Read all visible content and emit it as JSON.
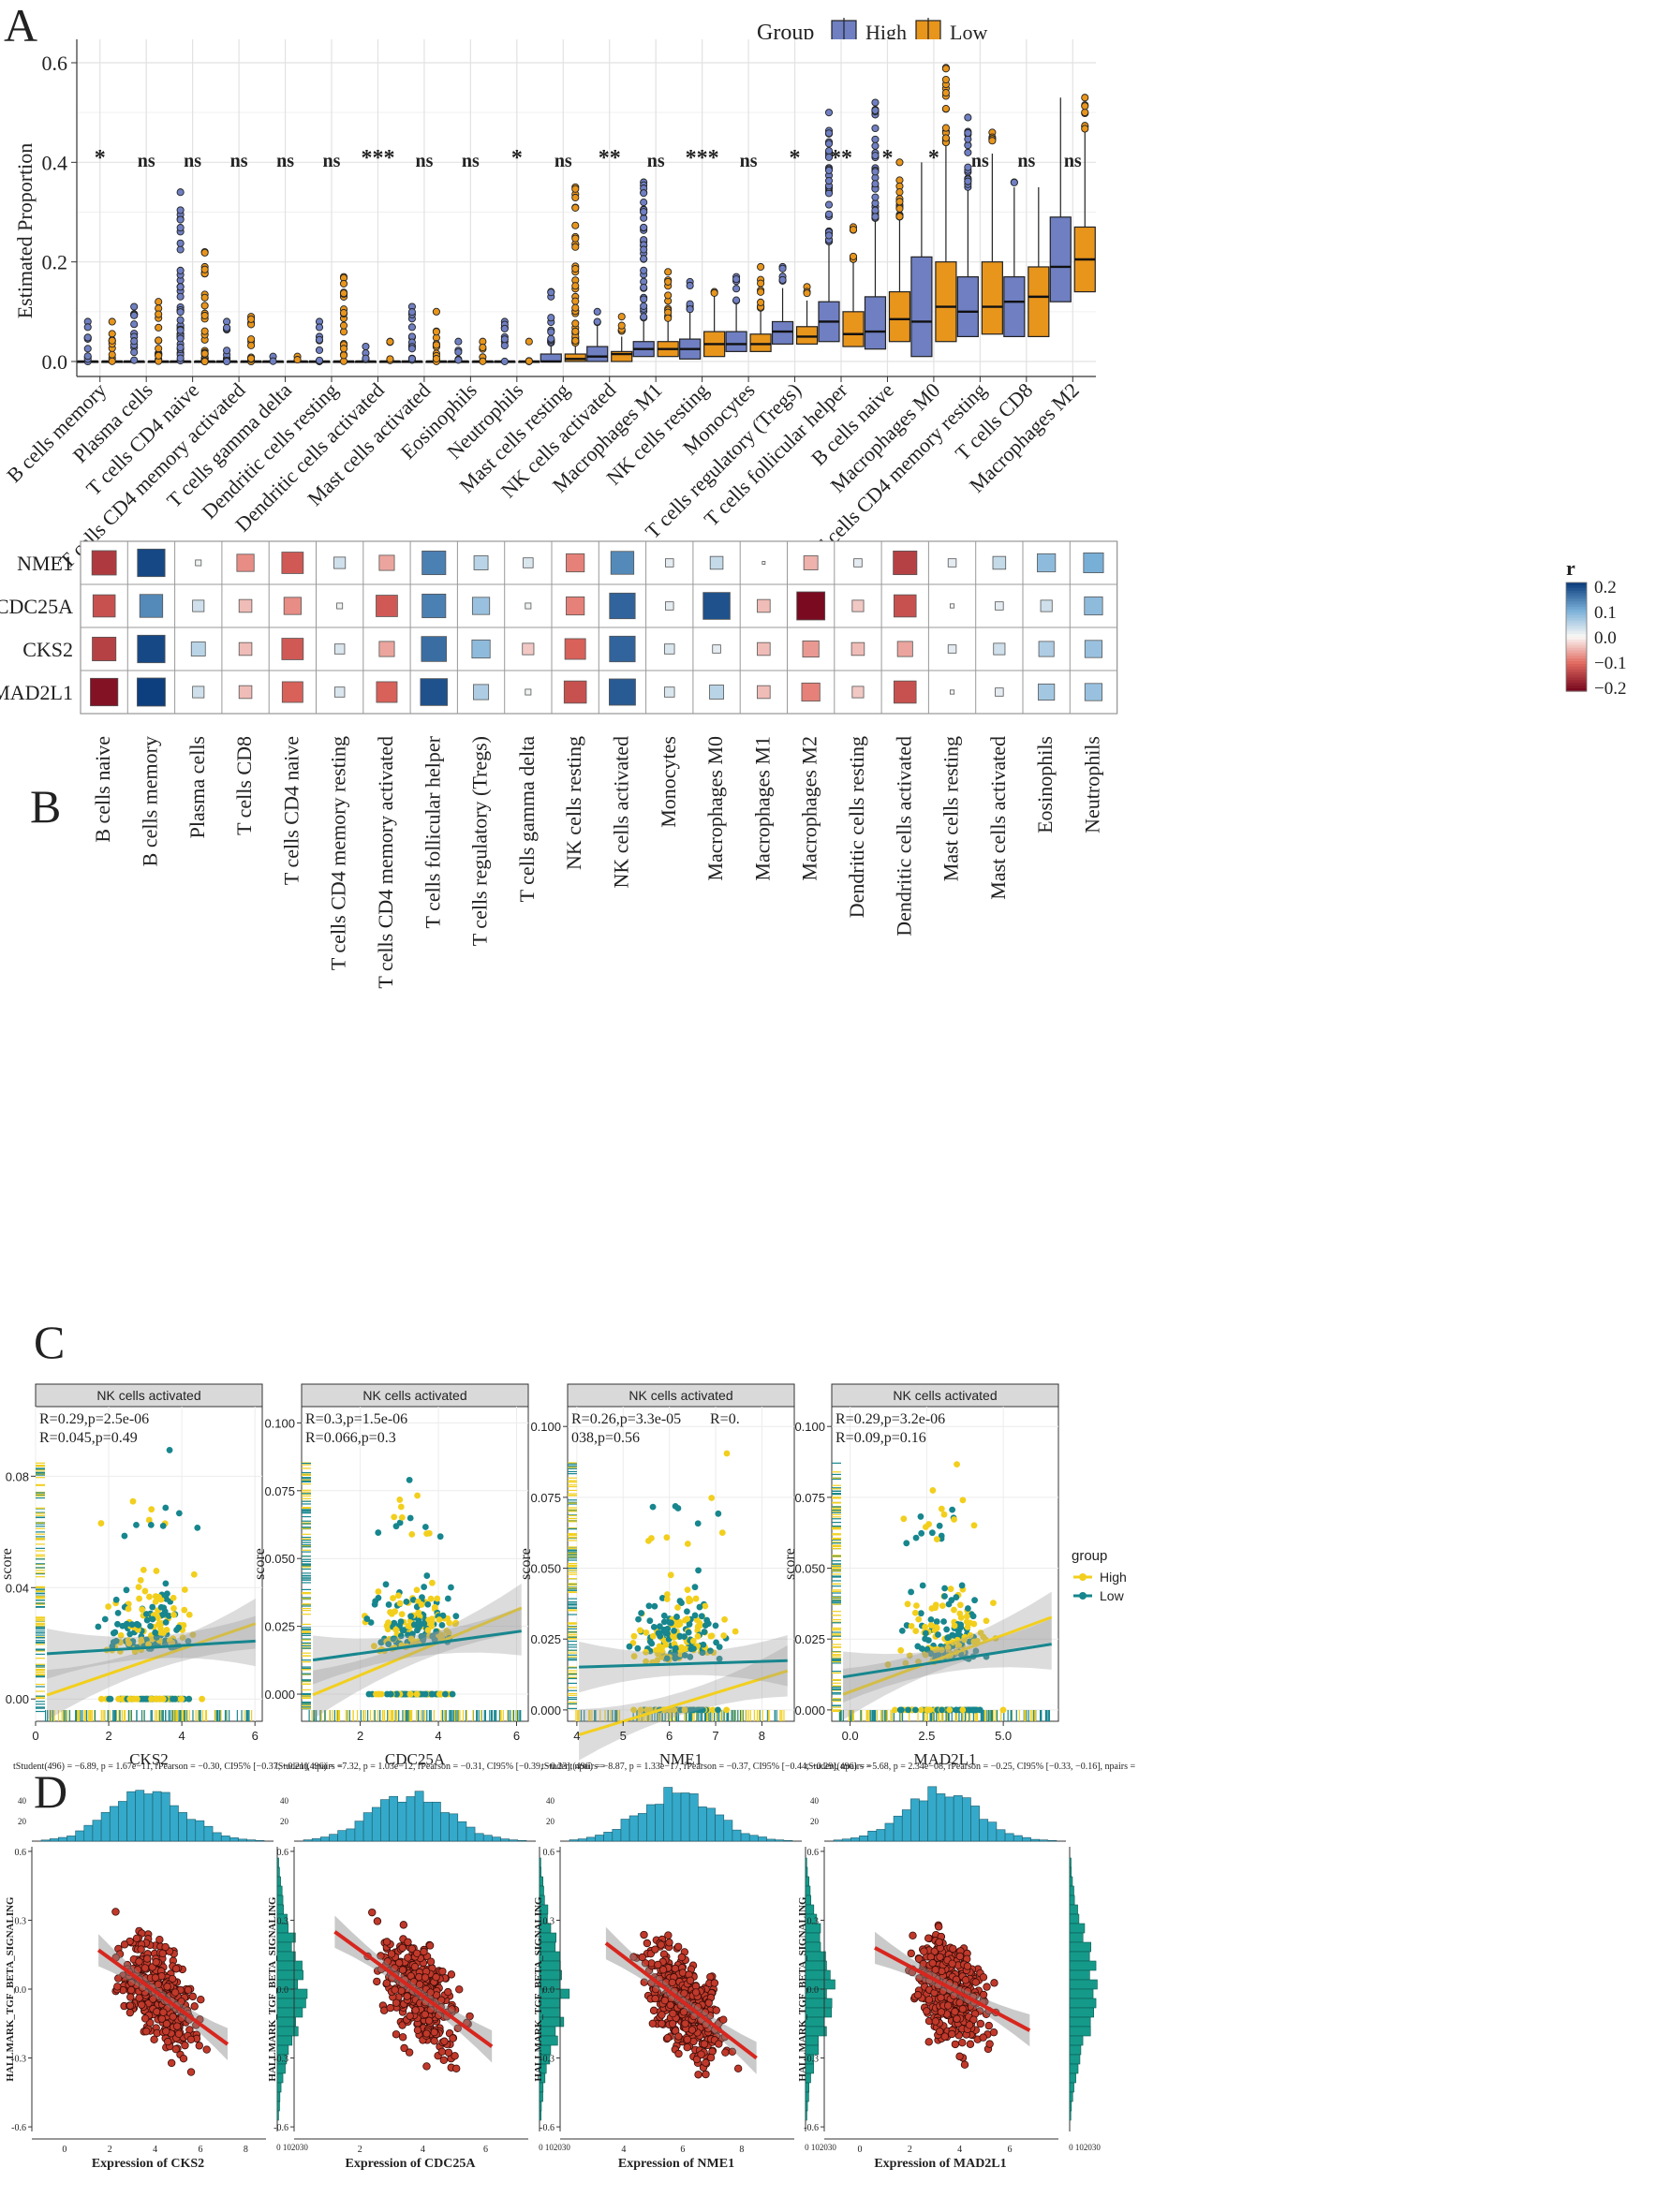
{
  "colors": {
    "high_box": "#6f7fc2",
    "low_box": "#e8951c",
    "corr_pos": "#0d3f7e",
    "corr_neg": "#7a0a20",
    "scatter_high": "#f2cf1d",
    "scatter_low": "#17868e",
    "hist": "#35a9c9",
    "hist_side": "#159a8a",
    "scatter_pt": "#c0392b",
    "fit_red": "#d7261e"
  },
  "chart_data": [
    {
      "panel": "A",
      "type": "box",
      "legend_title": "Group",
      "legend": [
        "High",
        "Low"
      ],
      "ylabel": "Estimated Proportion",
      "ylim": [
        0,
        0.6
      ],
      "yticks": [
        "0.0",
        "0.2",
        "0.4",
        "0.6"
      ],
      "categories": [
        "B cells memory",
        "Plasma cells",
        "T cells CD4 naive",
        "T cells CD4 memory activated",
        "T cells gamma delta",
        "Dendritic cells resting",
        "Dendritic cells activated",
        "Mast cells activated",
        "Eosinophils",
        "Neutrophils",
        "Mast cells resting",
        "NK cells activated",
        "Macrophages M1",
        "NK cells resting",
        "Monocytes",
        "T cells regulatory (Tregs)",
        "T cells follicular helper",
        "B cells naive",
        "Macrophages M0",
        "T cells CD4 memory resting",
        "T cells CD8",
        "Macrophages M2"
      ],
      "significance": [
        "*",
        "ns",
        "ns",
        "ns",
        "ns",
        "ns",
        "***",
        "ns",
        "ns",
        "*",
        "ns",
        "**",
        "ns",
        "***",
        "ns",
        "*",
        "**",
        "*",
        "*",
        "ns",
        "ns",
        "ns"
      ],
      "series": [
        {
          "name": "High",
          "q1": [
            0,
            0,
            0,
            0,
            0,
            0,
            0,
            0,
            0,
            0,
            0,
            0,
            0.01,
            0.005,
            0.02,
            0.035,
            0.04,
            0.025,
            0.01,
            0.05,
            0.05,
            0.12
          ],
          "median": [
            0,
            0,
            0,
            0,
            0,
            0,
            0,
            0,
            0,
            0,
            0,
            0.01,
            0.025,
            0.025,
            0.035,
            0.06,
            0.08,
            0.06,
            0.08,
            0.1,
            0.12,
            0.19
          ],
          "q3": [
            0,
            0,
            0,
            0,
            0,
            0,
            0,
            0,
            0,
            0,
            0.015,
            0.03,
            0.04,
            0.045,
            0.06,
            0.08,
            0.12,
            0.13,
            0.21,
            0.17,
            0.17,
            0.29
          ],
          "max": [
            0.08,
            0.11,
            0.34,
            0.08,
            0.01,
            0.08,
            0.03,
            0.11,
            0.04,
            0.08,
            0.14,
            0.1,
            0.36,
            0.16,
            0.17,
            0.19,
            0.5,
            0.52,
            0.4,
            0.49,
            0.36,
            0.53
          ]
        },
        {
          "name": "Low",
          "q1": [
            0,
            0,
            0,
            0,
            0,
            0,
            0,
            0,
            0,
            0,
            0,
            0,
            0.01,
            0.01,
            0.02,
            0.035,
            0.03,
            0.04,
            0.04,
            0.055,
            0.05,
            0.14
          ],
          "median": [
            0,
            0,
            0,
            0,
            0,
            0,
            0,
            0,
            0,
            0,
            0.005,
            0.015,
            0.025,
            0.035,
            0.035,
            0.05,
            0.055,
            0.085,
            0.11,
            0.11,
            0.13,
            0.205
          ],
          "q3": [
            0,
            0,
            0,
            0,
            0,
            0,
            0,
            0,
            0,
            0,
            0.015,
            0.02,
            0.04,
            0.06,
            0.055,
            0.07,
            0.1,
            0.14,
            0.2,
            0.2,
            0.19,
            0.27
          ],
          "max": [
            0.08,
            0.12,
            0.22,
            0.09,
            0.01,
            0.17,
            0.04,
            0.1,
            0.04,
            0.04,
            0.35,
            0.09,
            0.18,
            0.14,
            0.19,
            0.15,
            0.27,
            0.4,
            0.59,
            0.46,
            0.35,
            0.53
          ]
        }
      ]
    },
    {
      "panel": "B",
      "type": "heatmap",
      "rows": [
        "NME1",
        "CDC25A",
        "CKS2",
        "MAD2L1"
      ],
      "columns": [
        "B cells naive",
        "B cells memory",
        "Plasma cells",
        "T cells CD8",
        "T cells CD4 naive",
        "T cells CD4 memory resting",
        "T cells CD4 memory activated",
        "T cells follicular helper",
        "T cells regulatory (Tregs)",
        "T cells gamma delta",
        "NK cells resting",
        "NK cells activated",
        "Monocytes",
        "Macrophages M0",
        "Macrophages M1",
        "Macrophages M2",
        "Dendritic cells resting",
        "Dendritic cells activated",
        "Mast cells resting",
        "Mast cells activated",
        "Eosinophils",
        "Neutrophils"
      ],
      "values": [
        [
          -0.18,
          0.23,
          0.01,
          -0.09,
          -0.14,
          0.04,
          -0.07,
          0.17,
          0.06,
          0.03,
          -0.1,
          0.16,
          0.02,
          0.05,
          0.0,
          -0.06,
          0.02,
          -0.17,
          0.02,
          0.05,
          0.1,
          0.12
        ],
        [
          -0.15,
          0.16,
          0.04,
          -0.05,
          -0.09,
          0.01,
          -0.14,
          0.17,
          0.09,
          0.01,
          -0.1,
          0.2,
          0.02,
          0.22,
          -0.05,
          -0.24,
          -0.04,
          -0.15,
          0.005,
          0.02,
          0.04,
          0.1
        ],
        [
          -0.17,
          0.23,
          0.06,
          -0.05,
          -0.14,
          0.03,
          -0.07,
          0.19,
          0.1,
          -0.04,
          -0.13,
          0.2,
          0.03,
          0.02,
          -0.05,
          -0.08,
          -0.05,
          -0.07,
          0.02,
          0.04,
          0.07,
          0.09
        ],
        [
          -0.23,
          0.24,
          0.04,
          -0.05,
          -0.13,
          0.03,
          -0.13,
          0.22,
          0.07,
          0.01,
          -0.15,
          0.21,
          0.03,
          0.06,
          -0.05,
          -0.1,
          -0.04,
          -0.15,
          0.005,
          0.02,
          0.08,
          0.09
        ]
      ],
      "legend_title": "r",
      "legend_ticks": [
        "0.2",
        "0.1",
        "0.0",
        "−0.1",
        "−0.2"
      ]
    },
    {
      "panel": "C",
      "type": "scatter",
      "facet_title": "NK cells activated",
      "ylabel": "score",
      "legend_title": "group",
      "legend": [
        "High",
        "Low"
      ],
      "plots": [
        {
          "xlabel": "CKS2",
          "xticks": [
            "0",
            "2",
            "4",
            "6"
          ],
          "yticks": [
            "0.00",
            "0.04",
            "0.08"
          ],
          "stat_high": "R=0.29,p=2.5e-06",
          "stat_low": "R=0.045,p=0.49"
        },
        {
          "xlabel": "CDC25A",
          "xticks": [
            "2",
            "4",
            "6"
          ],
          "yticks": [
            "0.000",
            "0.025",
            "0.050",
            "0.075",
            "0.100"
          ],
          "stat_high": "R=0.3,p=1.5e-06",
          "stat_low": "R=0.066,p=0.3"
        },
        {
          "xlabel": "NME1",
          "xticks": [
            "4",
            "5",
            "6",
            "7",
            "8"
          ],
          "yticks": [
            "0.000",
            "0.025",
            "0.050",
            "0.075",
            "0.100"
          ],
          "stat_high": "R=0.26,p=3.3e-05",
          "stat_high_tail": "R=0.",
          "stat_low": "038,p=0.56"
        },
        {
          "xlabel": "MAD2L1",
          "xticks": [
            "0.0",
            "2.5",
            "5.0"
          ],
          "yticks": [
            "0.000",
            "0.025",
            "0.050",
            "0.075",
            "0.100"
          ],
          "stat_high": "R=0.29,p=3.2e-06",
          "stat_low": "R=0.09,p=0.16"
        }
      ]
    },
    {
      "panel": "D",
      "type": "scatter",
      "ylabel": "HALLMARK_TGF_BETA_SIGNALING",
      "yticks": [
        "0.6",
        "0.3",
        "0.0",
        "-0.3",
        "-0.6"
      ],
      "hist_ticks": "0 102030",
      "plots": [
        {
          "xlabel": "Expression of CKS2",
          "xticks": [
            "0",
            "2",
            "4",
            "6",
            "8"
          ],
          "subtitle": "tStudent(496) = −6.89, p = 1.67e−11, r̂Pearson = −0.30, CI95% [−0.37, −0.21], npairs ="
        },
        {
          "xlabel": "Expression of CDC25A",
          "xticks": [
            "2",
            "4",
            "6"
          ],
          "subtitle": "tStudent(496) = −7.32, p = 1.03e−12, r̂Pearson = −0.31, CI95% [−0.39, −0.23], npairs ="
        },
        {
          "xlabel": "Expression of NME1",
          "xticks": [
            "4",
            "6",
            "8"
          ],
          "subtitle": "tStudent(496) = −8.87, p = 1.33e−17, r̂Pearson = −0.37, CI95% [−0.44, −0.29], npairs ="
        },
        {
          "xlabel": "Expression of MAD2L1",
          "xticks": [
            "0",
            "2",
            "4",
            "6"
          ],
          "subtitle": "tStudent(496) = −5.68, p = 2.34e−08, r̂Pearson = −0.25, CI95% [−0.33, −0.16], npairs ="
        }
      ]
    }
  ],
  "panel_labels": [
    "A",
    "B",
    "C",
    "D"
  ]
}
